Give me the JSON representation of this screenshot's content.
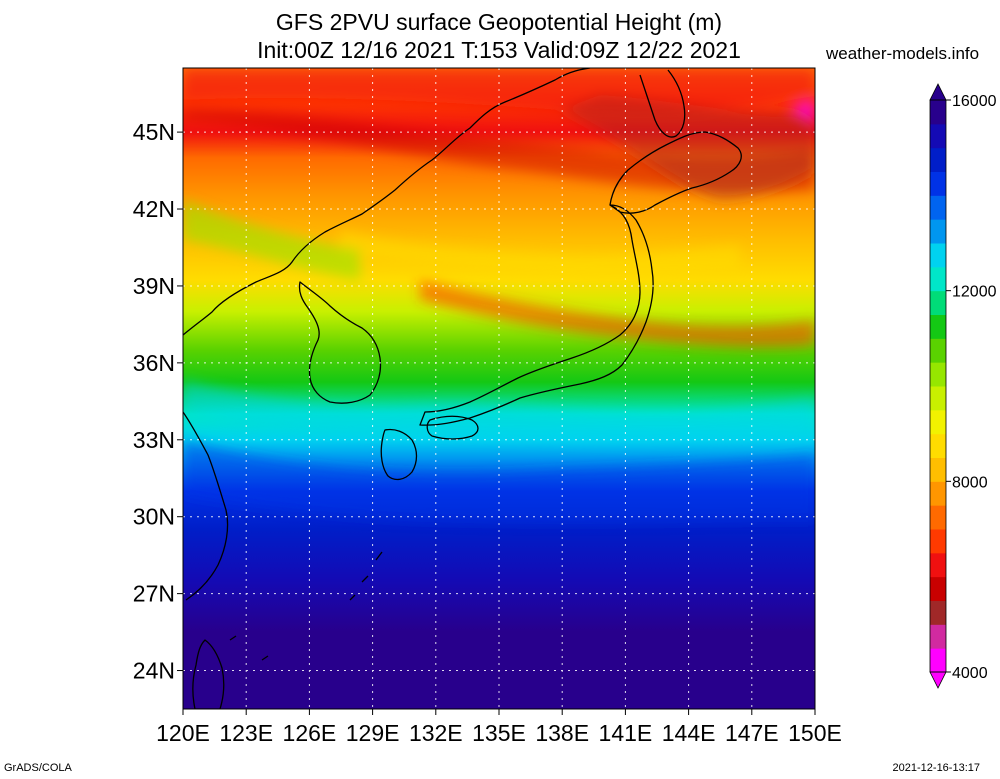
{
  "title": {
    "line1": "GFS 2PVU surface Geopotential Height (m)",
    "line2": "Init:00Z 12/16 2021 T:153 Valid:09Z 12/22 2021"
  },
  "brand": "weather-models.info",
  "map": {
    "region": "East Asia / Japan",
    "lon_range": [
      120,
      150
    ],
    "lat_range": [
      22.5,
      47.5
    ],
    "lon_ticks": [
      "120E",
      "123E",
      "126E",
      "129E",
      "132E",
      "135E",
      "138E",
      "141E",
      "144E",
      "147E",
      "150E"
    ],
    "lat_ticks": [
      "24N",
      "27N",
      "30N",
      "33N",
      "36N",
      "39N",
      "42N",
      "45N"
    ],
    "grid": "dotted"
  },
  "colorbar": {
    "min": 4000,
    "max": 16000,
    "labels": [
      "4000",
      "8000",
      "12000",
      "16000"
    ],
    "colors": [
      "#ff00ff",
      "#d12aa0",
      "#a02828",
      "#c80000",
      "#f01010",
      "#ff3a00",
      "#ff6a00",
      "#ff9600",
      "#ffbe00",
      "#ffdc00",
      "#f2f200",
      "#c8f000",
      "#96e600",
      "#5ad200",
      "#14c814",
      "#00dc78",
      "#00e6c8",
      "#00d2f0",
      "#0096f0",
      "#0064f0",
      "#0032e6",
      "#001ec8",
      "#140ab4",
      "#28008c"
    ]
  },
  "footer": {
    "left": "GrADS/COLA",
    "right": "2021-12-16-13:17"
  }
}
